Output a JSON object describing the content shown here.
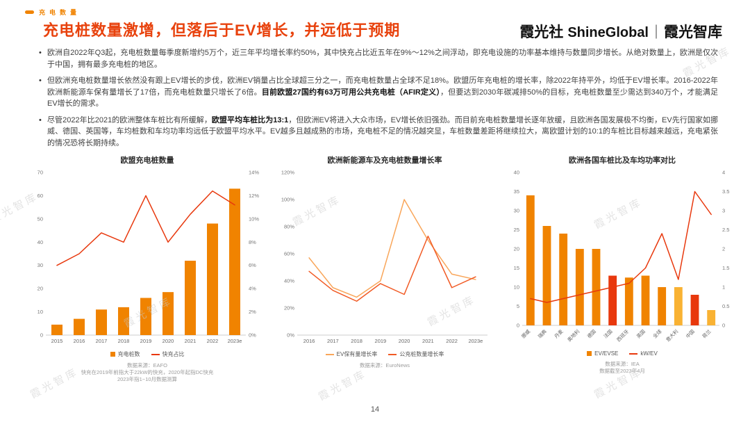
{
  "header": {
    "tag": "充电数量",
    "title": "充电桩数量激增，但落后于EV增长，并远低于预期",
    "logo": {
      "cn": "霞光社",
      "en": "ShineGlobal",
      "divider": "｜",
      "suffix": "霞光智库"
    }
  },
  "bullets": [
    {
      "segments": [
        {
          "text": "欧洲自2022年Q3起，充电桩数量每季度新增约5万个，近三年平均增长率约50%，其中快充占比近五年在9%～12%之间浮动，即充电设施的功率基本维持与数量同步增长。从绝对数量上，欧洲是仅次于中国，拥有最多充电桩的地区。",
          "bold": false
        }
      ]
    },
    {
      "segments": [
        {
          "text": "但欧洲充电桩数量增长依然没有跟上EV增长的步伐，欧洲EV销量占比全球超三分之一，而充电桩数量占全球不足18%。欧盟历年充电桩的增长率，除2022年持平外，均低于EV增长率。2016-2022年欧洲新能源车保有量增长了17倍，而充电桩数量只增长了6倍。",
          "bold": false
        },
        {
          "text": "目前欧盟27国约有63万可用公共充电桩（AFIR定义）",
          "bold": true
        },
        {
          "text": "，但要达到2030年碳减排50%的目标，充电桩数量至少需达到340万个，才能满足EV增长的需求。",
          "bold": false
        }
      ]
    },
    {
      "segments": [
        {
          "text": "尽管2022年比2021的欧洲整体车桩比有所缓解，",
          "bold": false
        },
        {
          "text": "欧盟平均车桩比为13:1",
          "bold": true
        },
        {
          "text": "，但欧洲EV将进入大众市场，EV增长依旧强劲。而目前充电桩数量增长逐年放缓，且欧洲各国发展极不均衡，EV先行国家如挪威、德国、英国等，车均桩数和车均功率均远低于欧盟平均水平。EV越多且越成熟的市场，充电桩不足的情况越突显，车桩数量差距将继续拉大，离欧盟计划的10:1的车桩比目标越来越远，充电紧张的情况恐将长期持续。",
          "bold": false
        }
      ]
    }
  ],
  "chart_data": [
    {
      "type": "bar",
      "title": "欧盟充电桩数量",
      "categories": [
        "2015",
        "2016",
        "2017",
        "2018",
        "2019",
        "2020",
        "2021",
        "2022",
        "2023e"
      ],
      "bars": {
        "name": "充电桩数",
        "color": "#F08300",
        "values": [
          4.5,
          7,
          11,
          12,
          16,
          18.5,
          32,
          48,
          63
        ]
      },
      "line": {
        "name": "快充占比",
        "color": "#E8380D",
        "axis": "right",
        "values": [
          6,
          7,
          8.8,
          8,
          12,
          8,
          10.4,
          12.4,
          11.2
        ]
      },
      "left_axis": {
        "min": 0,
        "max": 70,
        "step": 10,
        "suffix": ""
      },
      "right_axis": {
        "min": 0,
        "max": 14,
        "step": 2,
        "suffix": "%"
      },
      "source": [
        "数据来源：EAFO",
        "快充在2019年前指大于22kW的快充，2020年起指DC快充",
        "2023年指1~10月数据测算"
      ]
    },
    {
      "type": "line",
      "title": "欧洲新能源车及充电桩数量增长率",
      "categories": [
        "2016",
        "2017",
        "2018",
        "2019",
        "2020",
        "2021",
        "2022",
        "2023e"
      ],
      "series": [
        {
          "name": "EV保有量增长率",
          "color": "#F9A65A",
          "values": [
            57,
            35,
            28,
            40,
            100,
            70,
            45,
            41
          ]
        },
        {
          "name": "公充桩数量增长率",
          "color": "#F15A24",
          "values": [
            47,
            33,
            25,
            38,
            30,
            73,
            35,
            43
          ]
        }
      ],
      "y_axis": {
        "min": 0,
        "max": 120,
        "step": 20,
        "suffix": "%"
      },
      "source": [
        "数据来源：EuroNews"
      ]
    },
    {
      "type": "bar",
      "title": "欧洲各国车桩比及车均功率对比",
      "categories": [
        "挪威",
        "瑞典",
        "丹麦",
        "奥地利",
        "德国",
        "法国",
        "西班牙",
        "英国",
        "全球",
        "意大利",
        "中国",
        "荷兰"
      ],
      "bars": {
        "name": "EV/EVSE",
        "color": "#F08300",
        "colors": [
          "#F08300",
          "#F08300",
          "#F08300",
          "#F08300",
          "#F08300",
          "#E8380D",
          "#F08300",
          "#F08300",
          "#F08300",
          "#F9B233",
          "#E8380D",
          "#F9B233"
        ],
        "values": [
          34,
          26,
          24,
          20,
          20,
          13,
          12.5,
          13,
          10,
          10,
          8,
          4
        ]
      },
      "line": {
        "name": "kW/EV",
        "color": "#E8380D",
        "axis": "right",
        "values": [
          0.7,
          0.6,
          0.7,
          0.8,
          0.9,
          1.0,
          1.1,
          1.5,
          2.4,
          1.2,
          3.5,
          2.9
        ]
      },
      "left_axis": {
        "min": 0,
        "max": 40,
        "step": 5,
        "suffix": ""
      },
      "right_axis": {
        "min": 0,
        "max": 4,
        "step": 0.5,
        "suffix": ""
      },
      "source": [
        "数据来源：IEA",
        "数据截至2023年4月"
      ]
    }
  ],
  "watermark": {
    "text": "霞光智库"
  },
  "footer": {
    "page": "14"
  }
}
